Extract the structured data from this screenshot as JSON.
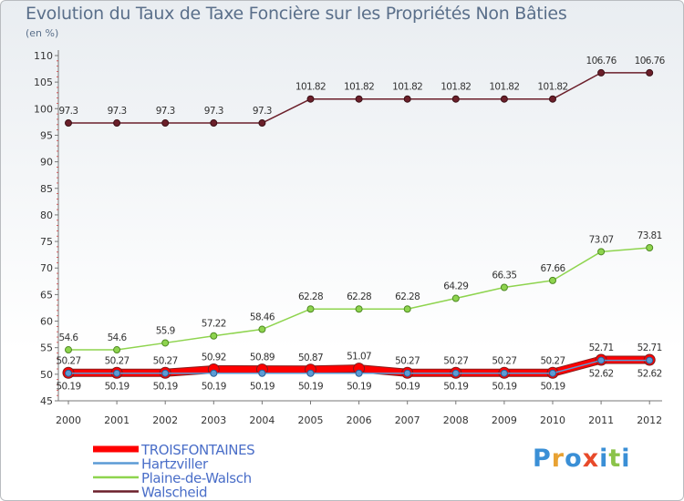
{
  "title": "Evolution du Taux de Taxe Foncière sur les Propriétés Non Bâties",
  "unit_label": "(en %)",
  "logo": {
    "text": "Proxiti",
    "colors": [
      "#3a8fd6",
      "#e8a233",
      "#3a8fd6",
      "#e84a2a",
      "#3a8fd6",
      "#8bc34a",
      "#3a8fd6"
    ]
  },
  "chart_data": {
    "type": "line",
    "title": "Evolution du Taux de Taxe Foncière sur les Propriétés Non Bâties",
    "ylabel": "(en %)",
    "xlabel": "",
    "x": [
      "2000",
      "2001",
      "2002",
      "2003",
      "2004",
      "2005",
      "2006",
      "2007",
      "2008",
      "2009",
      "2010",
      "2011",
      "2012"
    ],
    "ylim": [
      45,
      110
    ],
    "yticks": [
      45,
      50,
      55,
      60,
      65,
      70,
      75,
      80,
      85,
      90,
      95,
      100,
      105,
      110
    ],
    "grid": false,
    "legend_position": "bottom-left",
    "series": [
      {
        "name": "TROISFONTAINES",
        "color": "#ff0000",
        "values": [
          50.27,
          50.27,
          50.27,
          50.92,
          50.89,
          50.87,
          51.07,
          50.27,
          50.27,
          50.27,
          50.27,
          52.71,
          52.71
        ],
        "labels": [
          "50.27",
          "50.27",
          "50.27",
          "50.92",
          "50.89",
          "50.87",
          "51.07",
          "50.27",
          "50.27",
          "50.27",
          "50.27",
          "52.71",
          "52.71"
        ]
      },
      {
        "name": "Hartzviller",
        "color": "#5b9bd5",
        "values": [
          50.19,
          50.19,
          50.19,
          50.19,
          50.19,
          50.19,
          50.19,
          50.19,
          50.19,
          50.19,
          50.19,
          52.62,
          52.62
        ],
        "labels": [
          "50.19",
          "50.19",
          "50.19",
          "50.19",
          "50.19",
          "50.19",
          "50.19",
          "50.19",
          "50.19",
          "50.19",
          "50.19",
          "52.62",
          "52.62"
        ]
      },
      {
        "name": "Plaine-de-Walsch",
        "color": "#8ed44e",
        "values": [
          54.6,
          54.6,
          55.9,
          57.22,
          58.46,
          62.28,
          62.28,
          62.28,
          64.29,
          66.35,
          67.66,
          73.07,
          73.81
        ],
        "labels": [
          "54.6",
          "54.6",
          "55.9",
          "57.22",
          "58.46",
          "62.28",
          "62.28",
          "62.28",
          "64.29",
          "66.35",
          "67.66",
          "73.07",
          "73.81"
        ]
      },
      {
        "name": "Walscheid",
        "color": "#6b1f2a",
        "values": [
          97.3,
          97.3,
          97.3,
          97.3,
          97.3,
          101.82,
          101.82,
          101.82,
          101.82,
          101.82,
          101.82,
          106.76,
          106.76
        ],
        "labels": [
          "97.3",
          "97.3",
          "97.3",
          "97.3",
          "97.3",
          "101.82",
          "101.82",
          "101.82",
          "101.82",
          "101.82",
          "101.82",
          "106.76",
          "106.76"
        ]
      }
    ]
  }
}
